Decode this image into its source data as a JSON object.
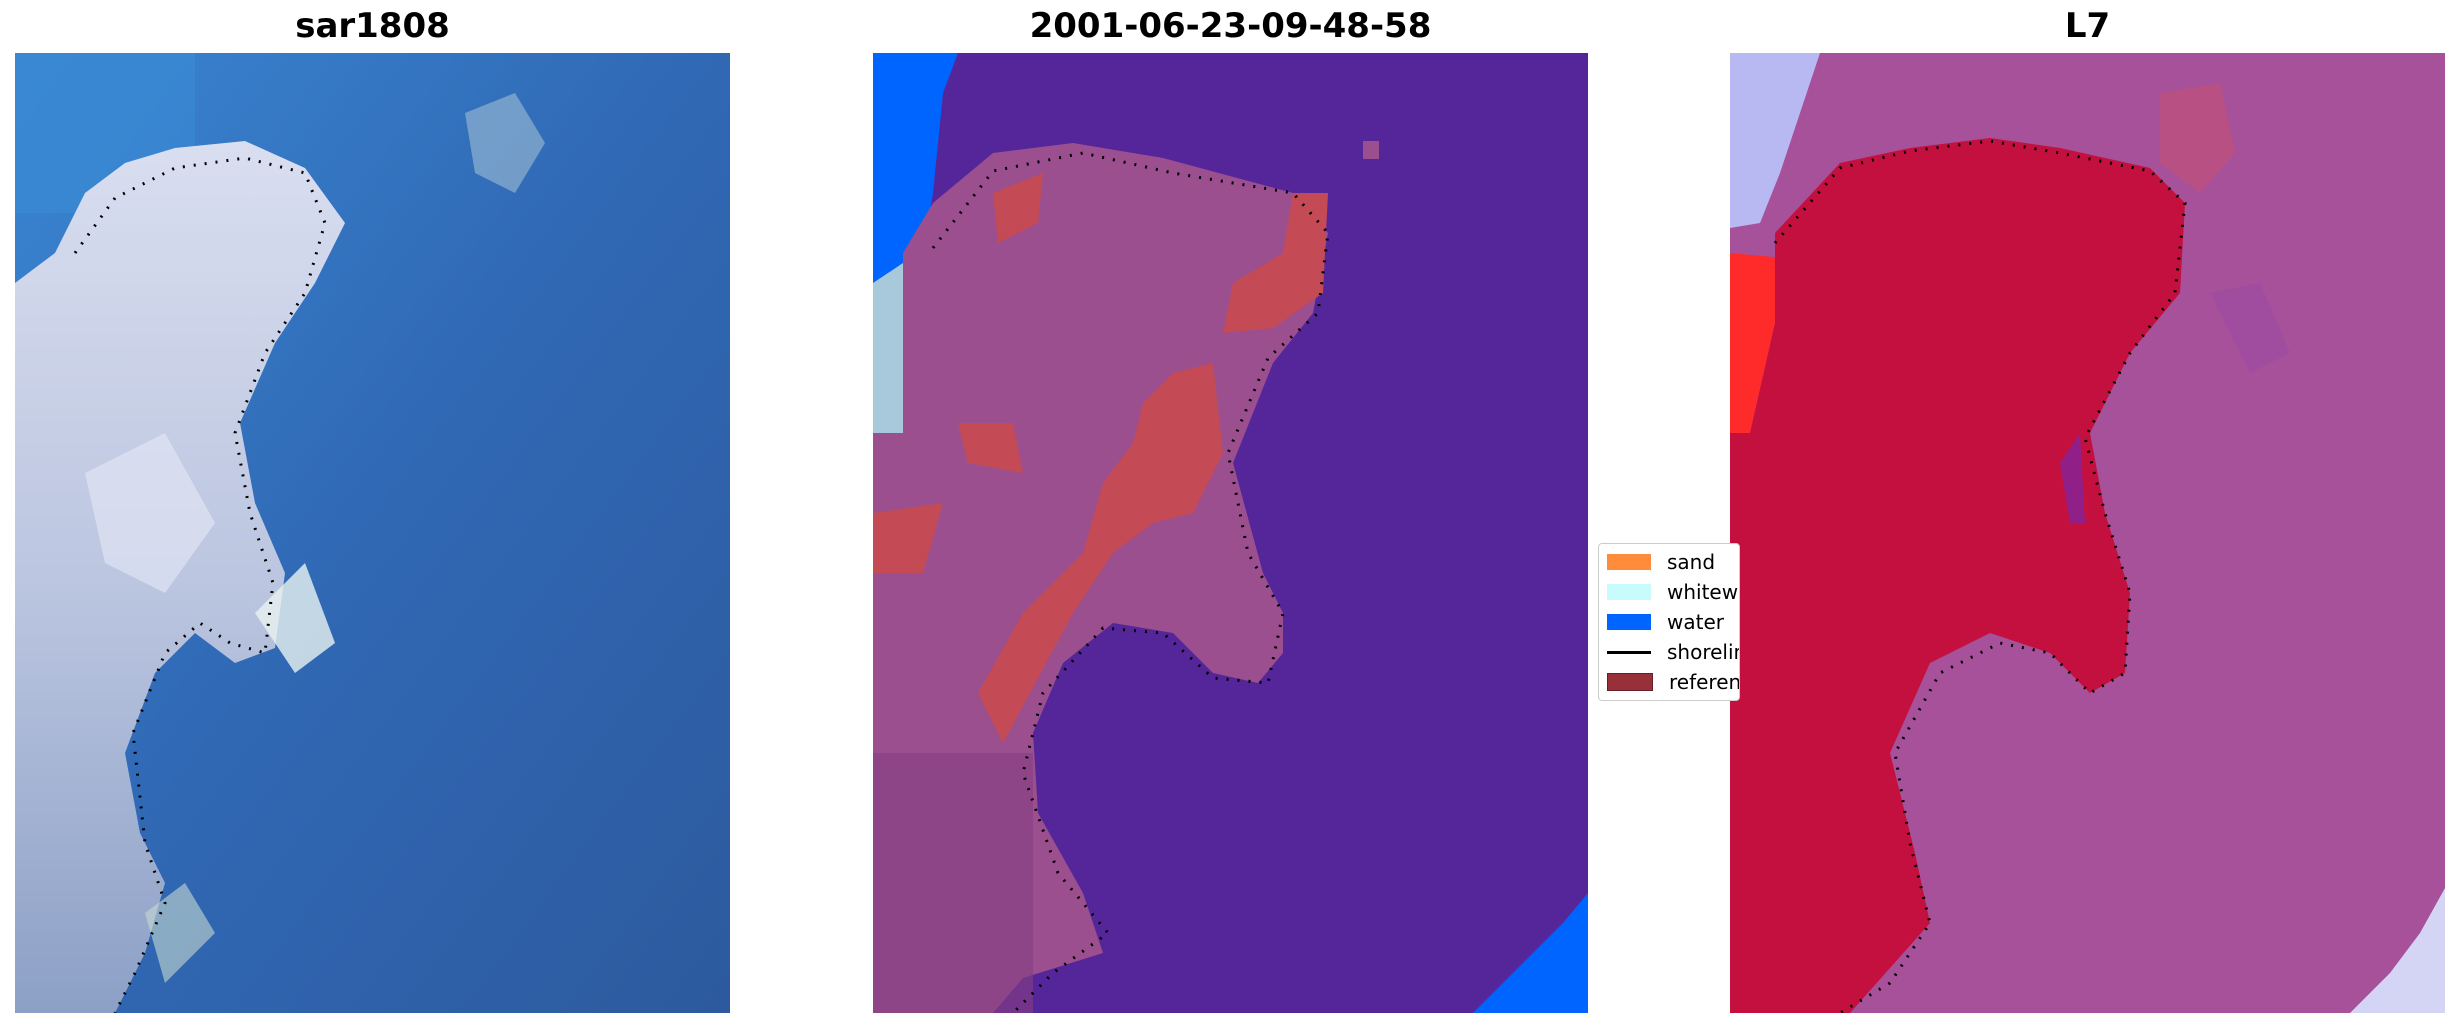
{
  "panels": [
    {
      "title": "sar1808"
    },
    {
      "title": "2001-06-23-09-48-58"
    },
    {
      "title": "L7"
    }
  ],
  "legend": {
    "items": [
      {
        "label": "sand",
        "color": "#ff8c3a"
      },
      {
        "label": "whitewater",
        "color": "#c8fcfc"
      },
      {
        "label": "water",
        "color": "#0064ff"
      },
      {
        "label": "shoreline",
        "color": "#000000"
      },
      {
        "label": "reference",
        "color": "#98303a"
      }
    ]
  },
  "colors": {
    "rgb_water": "#2f5fa8",
    "rgb_land": "#c8cfe6",
    "class_water": "#55269a",
    "class_land": "#9b4f8f",
    "class_ref": "#c44a55",
    "ndwi_land": "#c3103f",
    "ndwi_water": "#a6519a"
  }
}
